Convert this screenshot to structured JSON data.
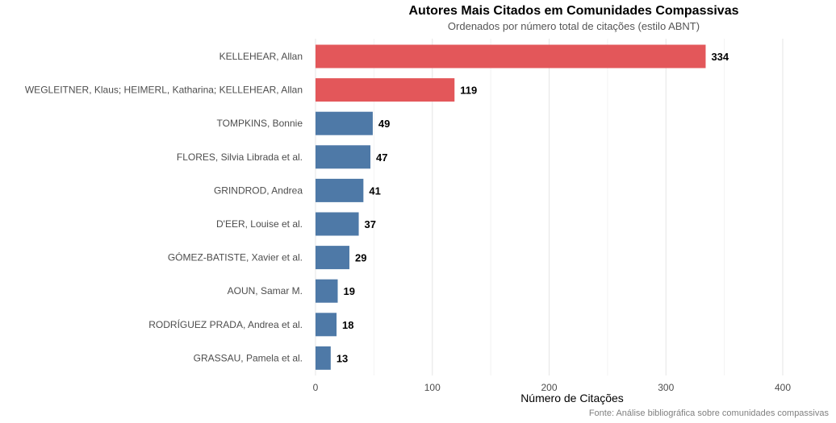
{
  "chart_data": {
    "type": "bar",
    "orientation": "horizontal",
    "title": "Autores Mais Citados em Comunidades Compassivas",
    "subtitle": "Ordenados por número total de citações (estilo ABNT)",
    "xlabel": "Número de Citações",
    "ylabel": "",
    "caption": "Fonte: Análise bibliográfica sobre comunidades compassivas",
    "xlim": [
      0,
      400
    ],
    "xticks": [
      0,
      100,
      200,
      300,
      400
    ],
    "grid": true,
    "legend": "none",
    "categories": [
      "KELLEHEAR, Allan",
      "WEGLEITNER, Klaus; HEIMERL, Katharina; KELLEHEAR, Allan",
      "TOMPKINS, Bonnie",
      "FLORES, Silvia Librada et al.",
      "GRINDROD, Andrea",
      "D'EER, Louise et al.",
      "GÓMEZ-BATISTE, Xavier et al.",
      "AOUN, Samar M.",
      "RODRÍGUEZ PRADA, Andrea et al.",
      "GRASSAU, Pamela et al."
    ],
    "values": [
      334,
      119,
      49,
      47,
      41,
      37,
      29,
      19,
      18,
      13
    ],
    "highlight_colors": [
      "#e3575a",
      "#e3575a",
      "#4e79a7",
      "#4e79a7",
      "#4e79a7",
      "#4e79a7",
      "#4e79a7",
      "#4e79a7",
      "#4e79a7",
      "#4e79a7"
    ]
  }
}
